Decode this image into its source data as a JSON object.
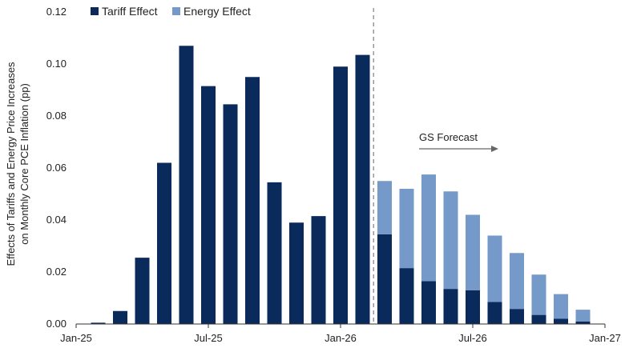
{
  "chart_data": {
    "type": "bar",
    "stacked": true,
    "ylabel_lines": [
      "Effects of Tariffs and Energy Price Increases",
      "on Monthly Core PCE Inflation (pp)"
    ],
    "ylim": [
      0,
      0.12
    ],
    "y_ticks": [
      "0.00",
      "0.02",
      "0.04",
      "0.06",
      "0.08",
      "0.10",
      "0.12"
    ],
    "x_ticks": [
      "Jan-25",
      "Jul-25",
      "Jan-26",
      "Jul-26",
      "Jan-27"
    ],
    "grid": false,
    "legend_position": "top-left",
    "categories": [
      "Feb-25",
      "Mar-25",
      "Apr-25",
      "May-25",
      "Jun-25",
      "Jul-25",
      "Aug-25",
      "Sep-25",
      "Oct-25",
      "Nov-25",
      "Dec-25",
      "Jan-26",
      "Feb-26",
      "Mar-26",
      "Apr-26",
      "May-26",
      "Jun-26",
      "Jul-26",
      "Aug-26",
      "Sep-26",
      "Oct-26",
      "Nov-26",
      "Dec-26"
    ],
    "series": [
      {
        "name": "Tariff Effect",
        "color": "#0b2a5c",
        "values": [
          0.0005,
          0.005,
          0.0255,
          0.062,
          0.107,
          0.0915,
          0.0845,
          0.095,
          0.0545,
          0.039,
          0.0415,
          0.099,
          0.1035,
          0.0345,
          0.0215,
          0.0165,
          0.0135,
          0.013,
          0.0085,
          0.0058,
          0.0035,
          0.002,
          0.001
        ]
      },
      {
        "name": "Energy Effect",
        "color": "#7599c8",
        "values": [
          0,
          0,
          0,
          0,
          0,
          0,
          0,
          0,
          0,
          0,
          0,
          0,
          0,
          0.0205,
          0.0305,
          0.041,
          0.0375,
          0.029,
          0.0255,
          0.0215,
          0.0155,
          0.0095,
          0.0045
        ]
      }
    ],
    "forecast_start": "Mar-26",
    "annotation": "GS Forecast"
  }
}
